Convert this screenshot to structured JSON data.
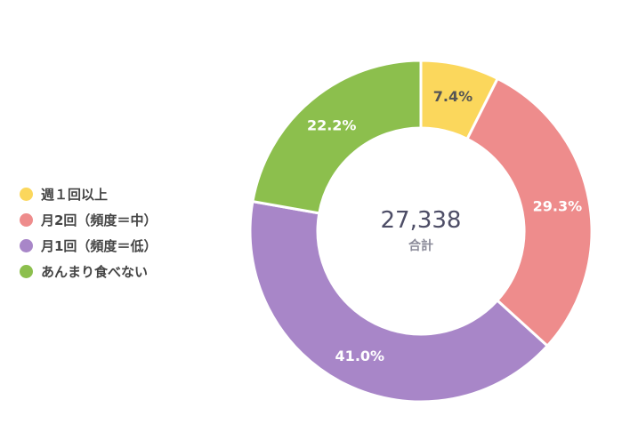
{
  "chart_data": {
    "type": "pie",
    "title": "",
    "categories": [
      "週１回以上",
      "月2回（頻度＝中）",
      "月1回（頻度＝低）",
      "あんまり食べない"
    ],
    "values": [
      7.4,
      29.3,
      41.0,
      22.2
    ],
    "value_labels": [
      "7.4%",
      "29.3%",
      "41.0%",
      "22.2%"
    ],
    "colors": [
      "#fbd75c",
      "#ee8c8c",
      "#a886c8",
      "#8cbf4d"
    ],
    "donut": true,
    "center": {
      "total": "27,338",
      "caption": "合計"
    },
    "legend_position": "left"
  }
}
